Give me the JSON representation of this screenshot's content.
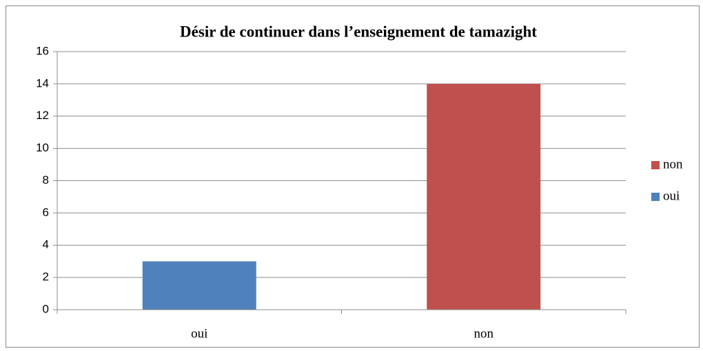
{
  "chart_data": {
    "type": "bar",
    "title": "Désir de continuer dans l’enseignement de tamazight",
    "categories": [
      "oui",
      "non"
    ],
    "values": [
      3,
      14
    ],
    "colors": [
      "#4f81bd",
      "#c0504d"
    ],
    "ylim": [
      0,
      16
    ],
    "yticks": [
      0,
      2,
      4,
      6,
      8,
      10,
      12,
      14,
      16
    ],
    "grid": true,
    "legend": "right"
  }
}
